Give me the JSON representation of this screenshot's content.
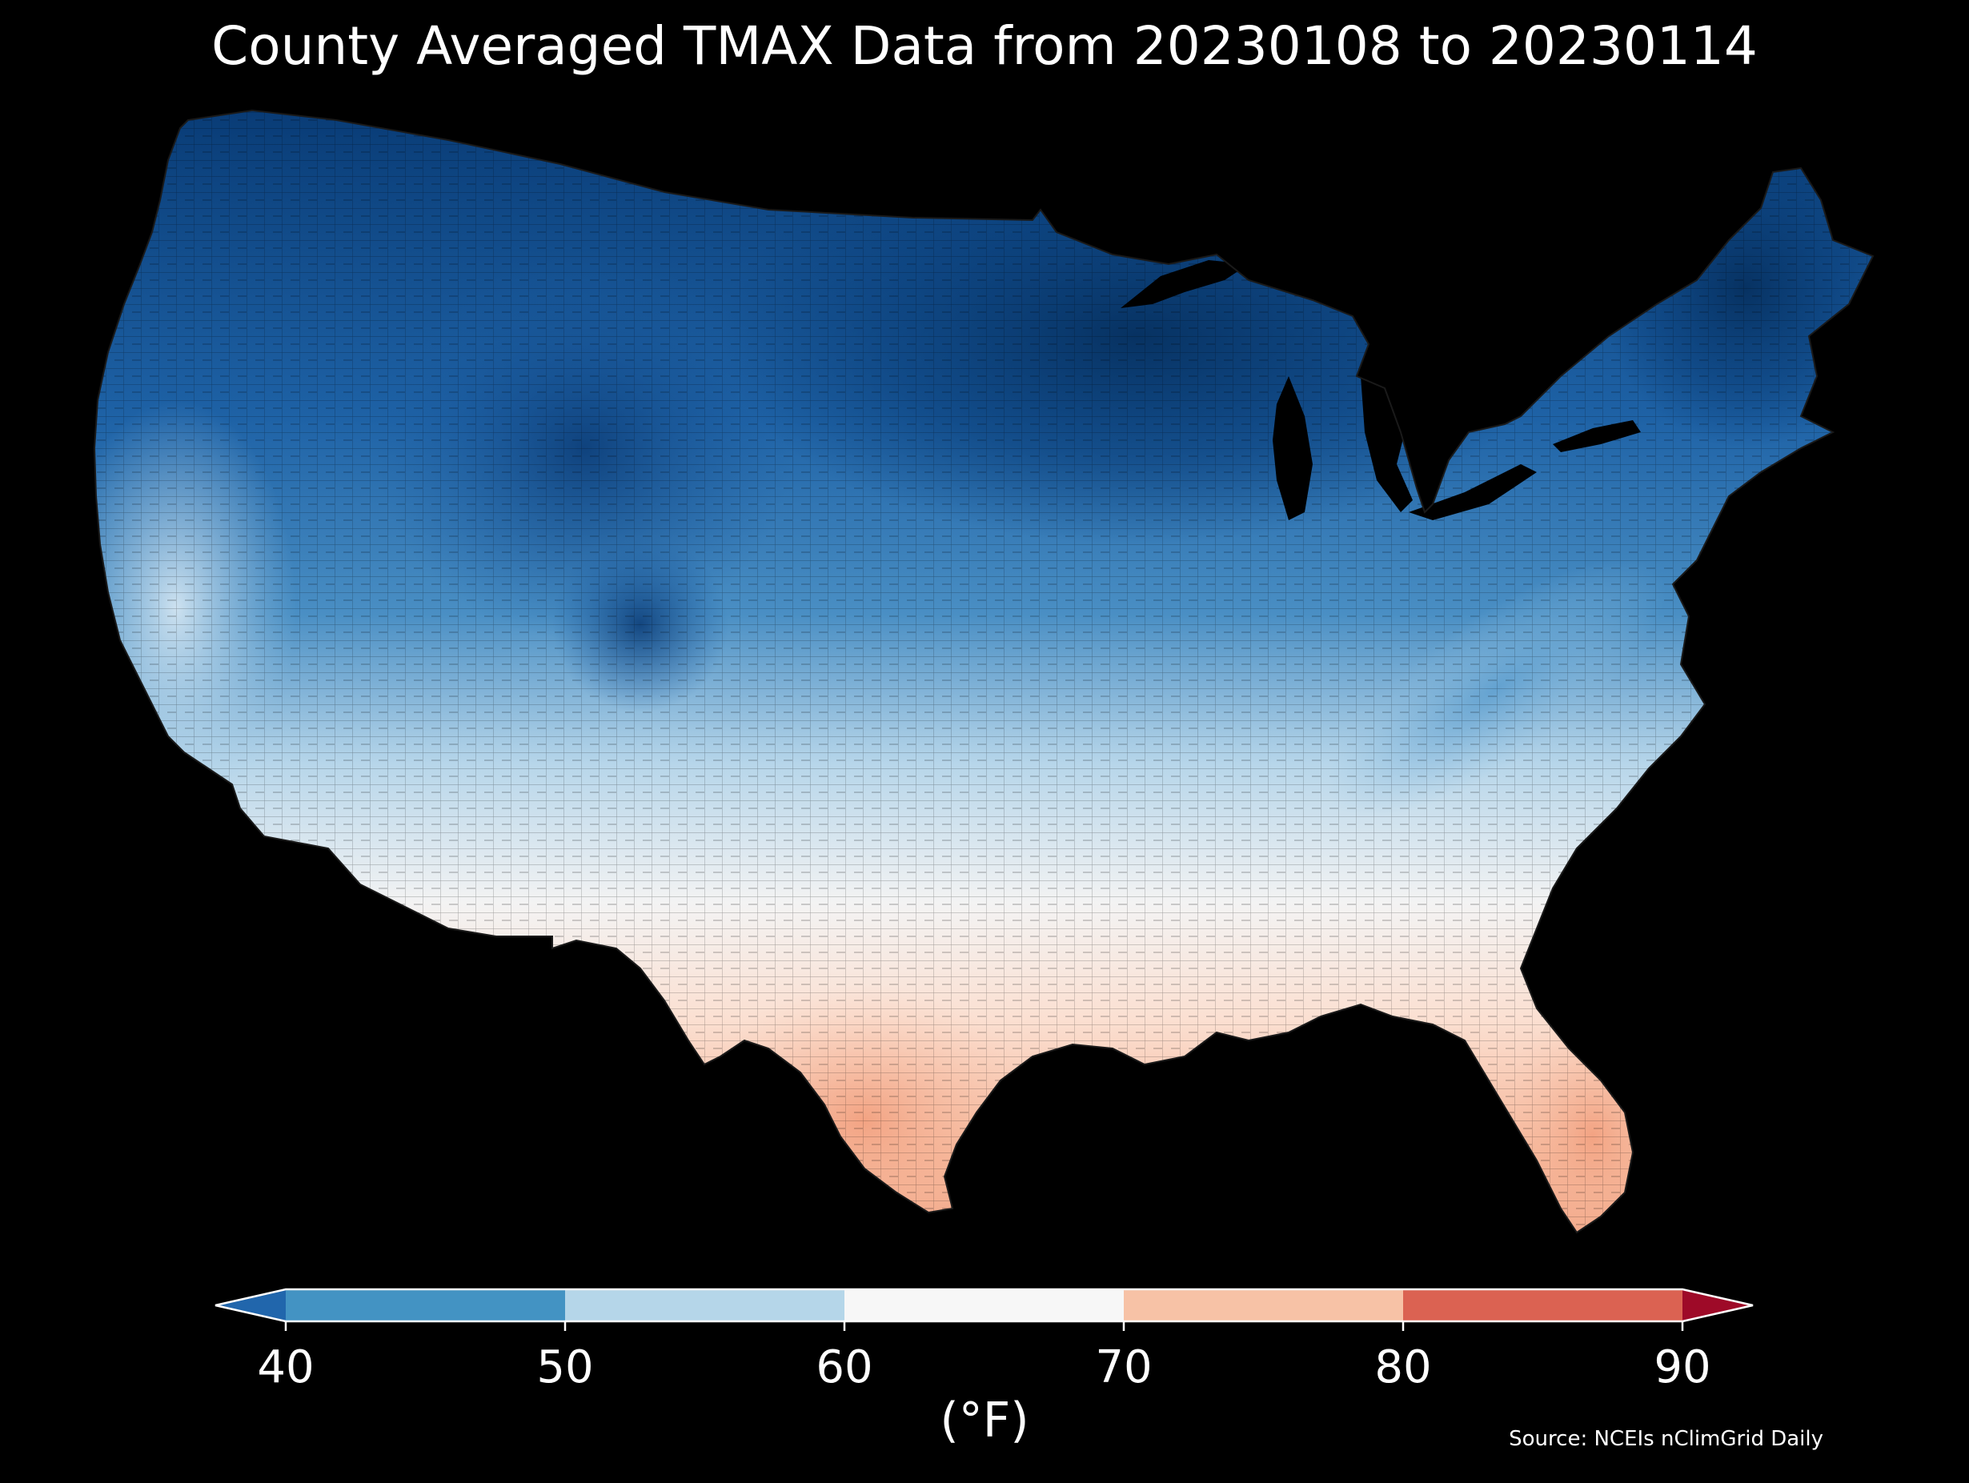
{
  "title": "County Averaged TMAX Data from 20230108 to 20230114",
  "colorbar": {
    "unit_label": "(°F)",
    "ticks": [
      "40",
      "50",
      "60",
      "70",
      "80",
      "90"
    ],
    "bins": [
      {
        "range": [
          null,
          40
        ],
        "color": "#2166ac"
      },
      {
        "range": [
          40,
          50
        ],
        "color": "#4393c3"
      },
      {
        "range": [
          50,
          60
        ],
        "color": "#b5d6e9"
      },
      {
        "range": [
          60,
          70
        ],
        "color": "#f7f7f7"
      },
      {
        "range": [
          70,
          80
        ],
        "color": "#f7c2a6"
      },
      {
        "range": [
          80,
          90
        ],
        "color": "#db6252"
      },
      {
        "range": [
          90,
          null
        ],
        "color": "#9e0a28"
      }
    ]
  },
  "source": "Source: NCEIs nClimGrid Daily",
  "background": "#000000"
}
